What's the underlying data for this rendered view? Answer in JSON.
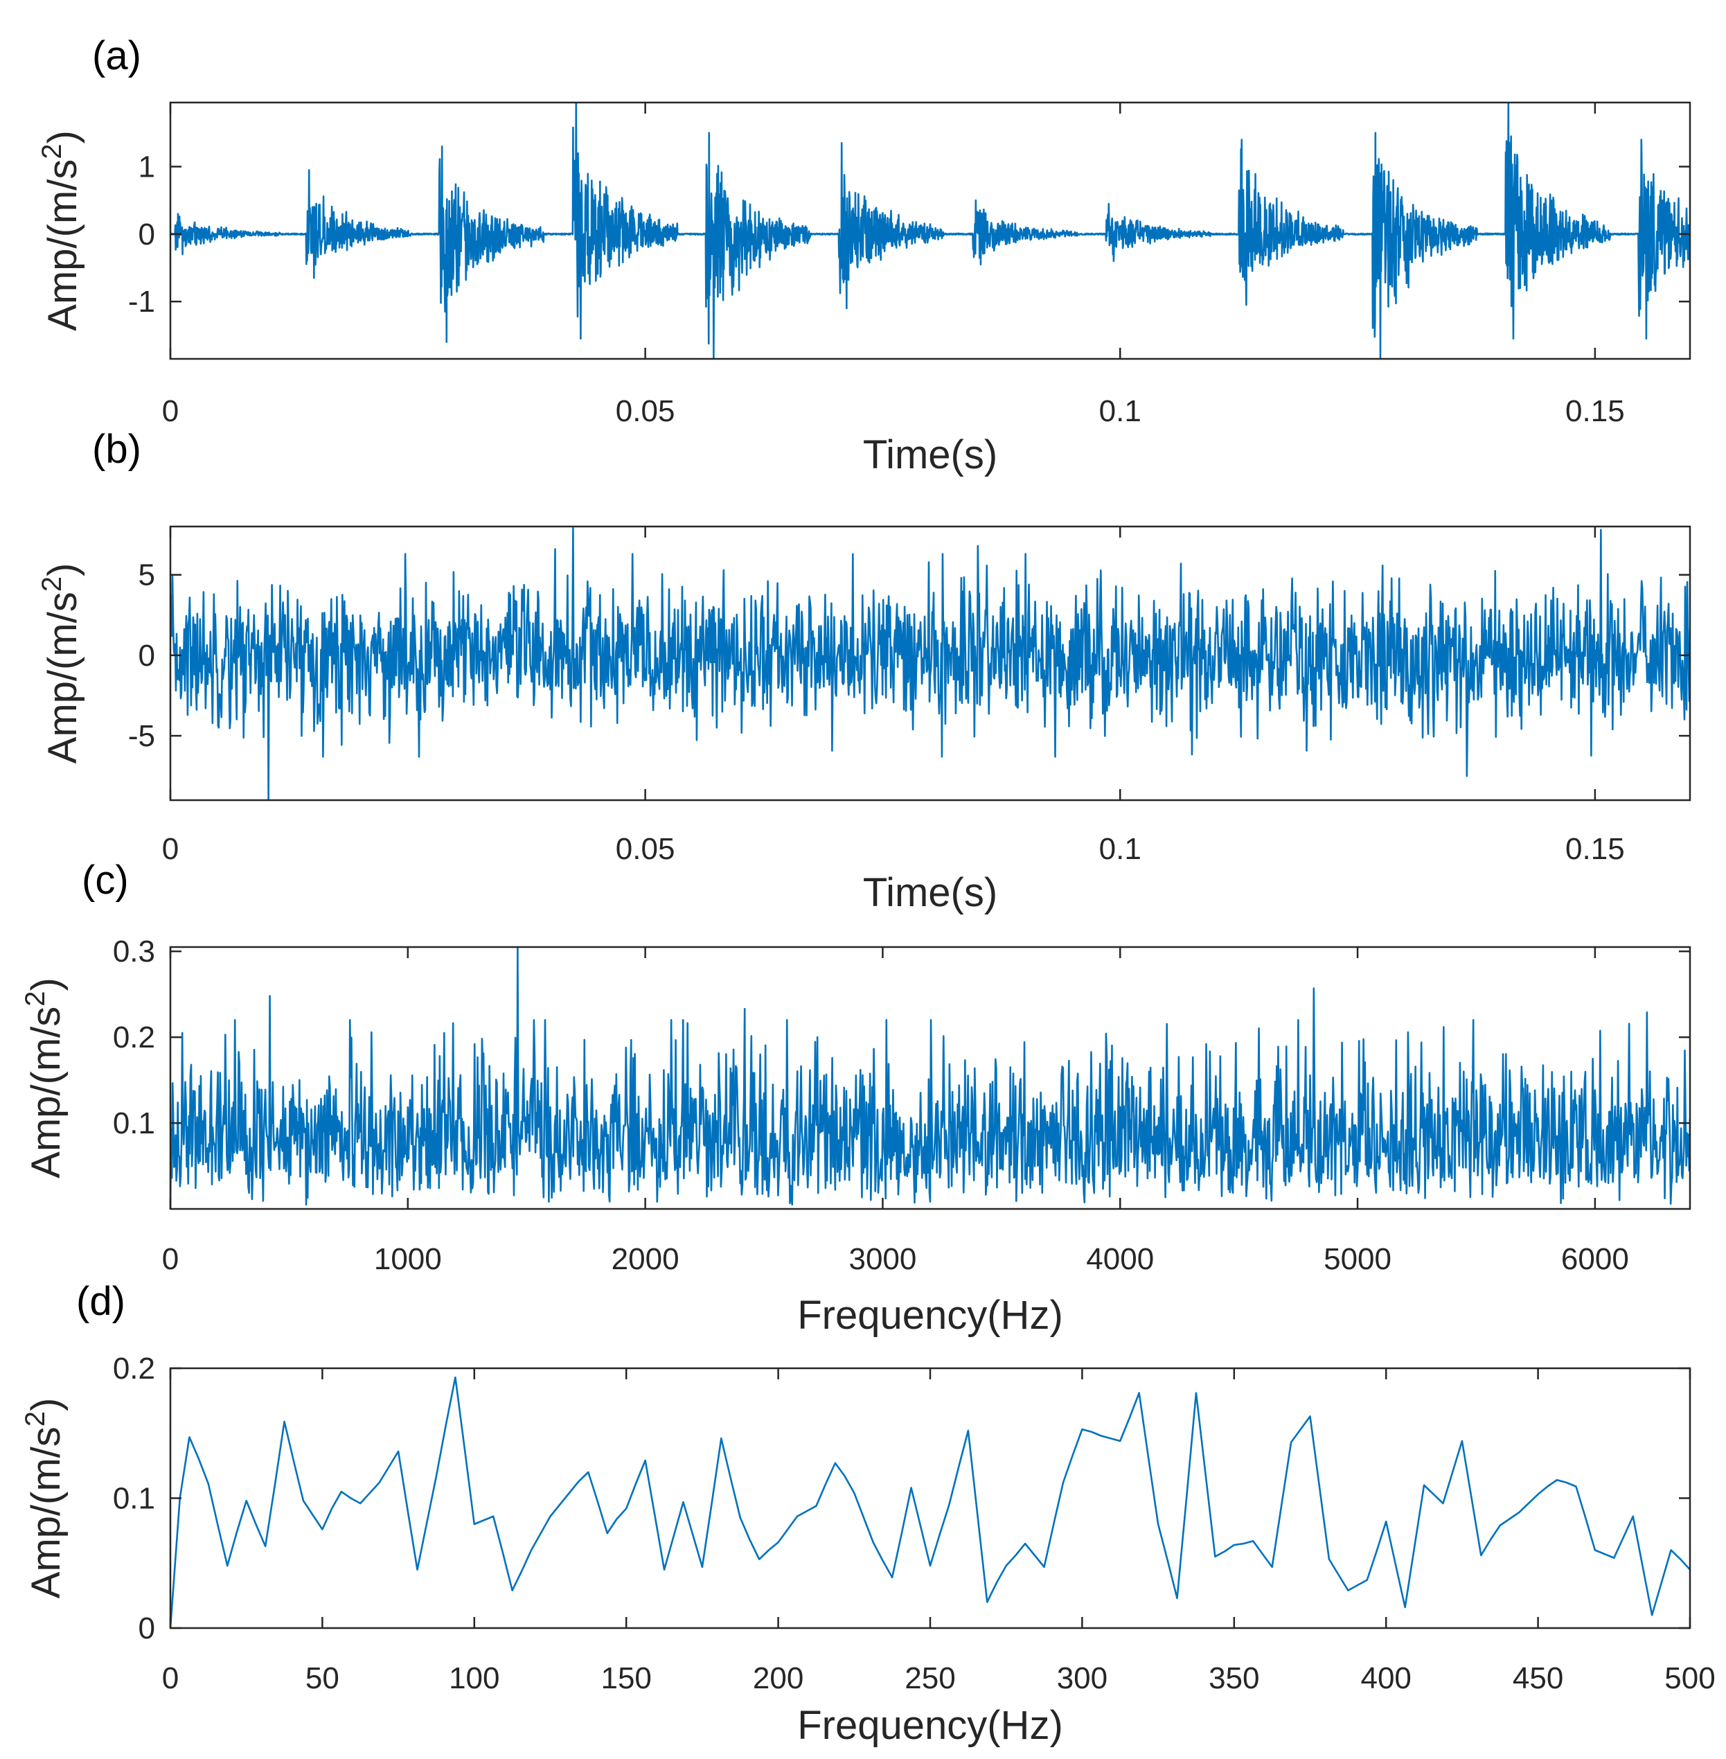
{
  "chart_data": [
    {
      "panel": "(a)",
      "type": "line",
      "title": "",
      "xlabel": "Time(s)",
      "ylabel": "Amp/(m/s",
      "ylabel_sup": "2",
      "ylabel_close": ")",
      "xlim": [
        0,
        0.16
      ],
      "ylim": [
        -1.85,
        1.95
      ],
      "xticks": [
        0,
        0.05,
        0.1,
        0.15
      ],
      "xtick_labels": [
        "0",
        "0.05",
        "0.1",
        "0.15"
      ],
      "yticks": [
        -1,
        0,
        1
      ],
      "ytick_labels": [
        "-1",
        "0",
        "1"
      ],
      "signal": {
        "kind": "impulses",
        "impact_times": [
          0.0005,
          0.0143,
          0.0283,
          0.0424,
          0.0564,
          0.0704,
          0.0845,
          0.0985,
          0.1125,
          0.1266,
          0.1406,
          0.1546
        ],
        "impact_peaks": [
          0.3,
          0.95,
          1.3,
          1.95,
          1.5,
          1.35,
          0.5,
          0.45,
          1.4,
          1.5,
          1.95,
          1.4
        ],
        "impact_troughs": [
          -0.3,
          -0.65,
          -1.6,
          -1.55,
          -1.85,
          -1.1,
          -0.45,
          -0.4,
          -1.05,
          -1.85,
          -1.55,
          -1.55
        ],
        "decay_seconds": 0.0045
      }
    },
    {
      "panel": "(b)",
      "type": "line",
      "title": "",
      "xlabel": "Time(s)",
      "ylabel": "Amp/(m/s",
      "ylabel_sup": "2",
      "ylabel_close": ")",
      "xlim": [
        0,
        0.16
      ],
      "ylim": [
        -9,
        8
      ],
      "xticks": [
        0,
        0.05,
        0.1,
        0.15
      ],
      "xtick_labels": [
        "0",
        "0.05",
        "0.1",
        "0.15"
      ],
      "yticks": [
        -5,
        0,
        5
      ],
      "ytick_labels": [
        "-5",
        "0",
        "5"
      ],
      "signal": {
        "kind": "noise",
        "std": 2.1,
        "spikes": [
          [
            0.0103,
            -9.0
          ],
          [
            0.0424,
            7.9
          ],
          [
            0.1365,
            -7.5
          ],
          [
            0.1506,
            7.8
          ],
          [
            0.085,
            6.8
          ],
          [
            0.0405,
            6.6
          ]
        ]
      }
    },
    {
      "panel": "(c)",
      "type": "line",
      "title": "",
      "xlabel": "Frequency(Hz)",
      "ylabel": "Amp/(m/s",
      "ylabel_sup": "2",
      "ylabel_close": ")",
      "xlim": [
        0,
        6400
      ],
      "ylim": [
        0,
        0.305
      ],
      "xticks": [
        0,
        1000,
        2000,
        3000,
        4000,
        5000,
        6000
      ],
      "xtick_labels": [
        "0",
        "1000",
        "2000",
        "3000",
        "4000",
        "5000",
        "6000"
      ],
      "yticks": [
        0.1,
        0.2,
        0.3
      ],
      "ytick_labels": [
        "0.1",
        "0.2",
        "0.3"
      ],
      "signal": {
        "kind": "spectrum",
        "mean": 0.085,
        "spikes": [
          [
            1463,
            0.305
          ],
          [
            4815,
            0.257
          ],
          [
            420,
            0.248
          ],
          [
            2420,
            0.233
          ],
          [
            6220,
            0.229
          ],
          [
            50,
            0.205
          ],
          [
            230,
            0.203
          ]
        ]
      }
    },
    {
      "panel": "(d)",
      "type": "line",
      "title": "",
      "xlabel": "Frequency(Hz)",
      "ylabel": "Amp/(m/s",
      "ylabel_sup": "2",
      "ylabel_close": ")",
      "xlim": [
        0,
        500
      ],
      "ylim": [
        0,
        0.2
      ],
      "xticks": [
        0,
        50,
        100,
        150,
        200,
        250,
        300,
        350,
        400,
        450,
        500
      ],
      "xtick_labels": [
        "0",
        "50",
        "100",
        "150",
        "200",
        "250",
        "300",
        "350",
        "400",
        "450",
        "500"
      ],
      "yticks": [
        0,
        0.1,
        0.2
      ],
      "ytick_labels": [
        "0",
        "0.1",
        "0.2"
      ],
      "x": [
        0,
        3.125,
        6.25,
        9.375,
        12.5,
        15.625,
        18.75,
        21.875,
        25,
        28.125,
        31.25,
        34.375,
        37.5,
        40.625,
        43.75,
        46.875,
        50,
        53.125,
        56.25,
        59.375,
        62.5,
        65.625,
        68.75,
        71.875,
        75,
        78.125,
        81.25,
        84.375,
        87.5,
        90.625,
        93.75,
        96.875,
        100,
        103.125,
        106.25,
        109.375,
        112.5,
        115.625,
        118.75,
        121.875,
        125,
        128.125,
        131.25,
        134.375,
        137.5,
        140.625,
        143.75,
        146.875,
        150,
        153.125,
        156.25,
        159.375,
        162.5,
        165.625,
        168.75,
        171.875,
        175,
        178.125,
        181.25,
        184.375,
        187.5,
        190.625,
        193.75,
        196.875,
        200,
        203.125,
        206.25,
        209.375,
        212.5,
        215.625,
        218.75,
        221.875,
        225,
        228.125,
        231.25,
        234.375,
        237.5,
        240.625,
        243.75,
        246.875,
        250,
        253.125,
        256.25,
        259.375,
        262.5,
        265.625,
        268.75,
        271.875,
        275,
        278.125,
        281.25,
        284.375,
        287.5,
        290.625,
        293.75,
        296.875,
        300,
        303.125,
        306.25,
        309.375,
        312.5,
        315.625,
        318.75,
        321.875,
        325,
        328.125,
        331.25,
        334.375,
        337.5,
        340.625,
        343.75,
        346.875,
        350,
        353.125,
        356.25,
        359.375,
        362.5,
        365.625,
        368.75,
        371.875,
        375,
        378.125,
        381.25,
        384.375,
        387.5,
        390.625,
        393.75,
        396.875,
        400,
        403.125,
        406.25,
        409.375,
        412.5,
        415.625,
        418.75,
        421.875,
        425,
        428.125,
        431.25,
        434.375,
        437.5,
        440.625,
        443.75,
        446.875,
        450,
        453.125,
        456.25,
        459.375,
        462.5,
        465.625,
        468.75,
        471.875,
        475,
        478.125,
        481.25,
        484.375,
        487.5,
        490.625,
        493.75,
        496.875,
        500
      ],
      "values": [
        0.0,
        0.1,
        0.147,
        0.13,
        0.111,
        0.079,
        0.048,
        0.074,
        0.098,
        0.08,
        0.063,
        0.11,
        0.159,
        0.128,
        0.098,
        0.087,
        0.076,
        0.092,
        0.105,
        0.1,
        0.096,
        0.104,
        0.112,
        0.124,
        0.136,
        0.09,
        0.045,
        0.081,
        0.117,
        0.156,
        0.193,
        0.137,
        0.08,
        0.083,
        0.086,
        0.058,
        0.029,
        0.044,
        0.06,
        0.073,
        0.086,
        0.095,
        0.104,
        0.113,
        0.12,
        0.097,
        0.073,
        0.084,
        0.092,
        0.111,
        0.129,
        0.087,
        0.045,
        0.071,
        0.097,
        0.072,
        0.047,
        0.096,
        0.146,
        0.115,
        0.085,
        0.068,
        0.053,
        0.06,
        0.066,
        0.076,
        0.086,
        0.09,
        0.094,
        0.111,
        0.127,
        0.117,
        0.104,
        0.085,
        0.066,
        0.052,
        0.039,
        0.073,
        0.108,
        0.078,
        0.048,
        0.072,
        0.095,
        0.124,
        0.152,
        0.086,
        0.02,
        0.035,
        0.048,
        0.056,
        0.065,
        0.056,
        0.047,
        0.08,
        0.112,
        0.133,
        0.153,
        0.151,
        0.148,
        0.146,
        0.144,
        0.162,
        0.181,
        0.13,
        0.08,
        0.052,
        0.023,
        0.101,
        0.181,
        0.118,
        0.055,
        0.059,
        0.064,
        0.065,
        0.067,
        0.057,
        0.047,
        0.095,
        0.143,
        0.153,
        0.163,
        0.108,
        0.053,
        0.041,
        0.029,
        0.033,
        0.037,
        0.059,
        0.082,
        0.049,
        0.016,
        0.063,
        0.11,
        0.103,
        0.096,
        0.12,
        0.144,
        0.1,
        0.056,
        0.068,
        0.079,
        0.084,
        0.089,
        0.096,
        0.103,
        0.109,
        0.114,
        0.112,
        0.109,
        0.085,
        0.06,
        0.057,
        0.054,
        0.07,
        0.086,
        0.048,
        0.01,
        0.035,
        0.06,
        0.053,
        0.045
      ]
    }
  ]
}
